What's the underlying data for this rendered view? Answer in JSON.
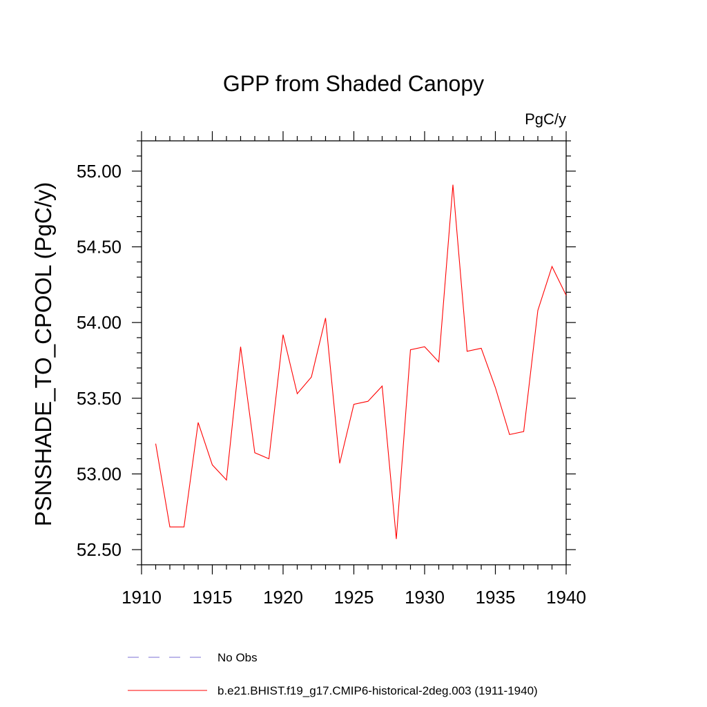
{
  "chart_data": {
    "type": "line",
    "title": "GPP from Shaded Canopy",
    "units_label": "PgC/y",
    "xlabel": "",
    "ylabel": "PSNSHADE_TO_CPOOL  (PgC/y)",
    "xlim": [
      1910,
      1940
    ],
    "ylim": [
      52.4,
      55.2
    ],
    "x_ticks": [
      1910,
      1915,
      1920,
      1925,
      1930,
      1935,
      1940
    ],
    "x_tick_labels": [
      "1910",
      "1915",
      "1920",
      "1925",
      "1930",
      "1935",
      "1940"
    ],
    "y_ticks": [
      52.5,
      53.0,
      53.5,
      54.0,
      54.5,
      55.0
    ],
    "y_tick_labels": [
      "52.50",
      "53.00",
      "53.50",
      "54.00",
      "54.50",
      "55.00"
    ],
    "x_minor_step": 1,
    "y_minor_step": 0.1,
    "grid": false,
    "legend_position": "bottom",
    "series": [
      {
        "name": "No Obs",
        "color": "#7b6fd6",
        "style": "dashed",
        "x": [],
        "y": []
      },
      {
        "name": "b.e21.BHIST.f19_g17.CMIP6-historical-2deg.003 (1911-1940)",
        "color": "#ff0000",
        "style": "solid",
        "x": [
          1911,
          1912,
          1913,
          1914,
          1915,
          1916,
          1917,
          1918,
          1919,
          1920,
          1921,
          1922,
          1923,
          1924,
          1925,
          1926,
          1927,
          1928,
          1929,
          1930,
          1931,
          1932,
          1933,
          1934,
          1935,
          1936,
          1937,
          1938,
          1939,
          1940
        ],
        "y": [
          53.2,
          52.65,
          52.65,
          53.34,
          53.06,
          52.96,
          53.84,
          53.14,
          53.1,
          53.92,
          53.53,
          53.64,
          54.03,
          53.07,
          53.46,
          53.48,
          53.58,
          52.57,
          53.82,
          53.84,
          53.74,
          54.91,
          53.81,
          53.83,
          53.57,
          53.26,
          53.28,
          54.08,
          54.37,
          54.18
        ]
      }
    ]
  }
}
